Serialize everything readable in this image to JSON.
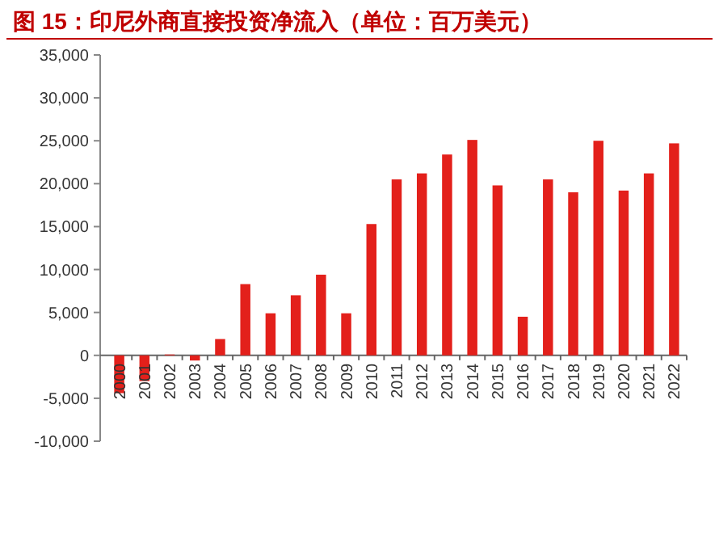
{
  "chart_data": {
    "type": "bar",
    "title": "图 15：印尼外商直接投资净流入（单位：百万美元）",
    "categories": [
      "2000",
      "2001",
      "2002",
      "2003",
      "2004",
      "2005",
      "2006",
      "2007",
      "2008",
      "2009",
      "2010",
      "2011",
      "2012",
      "2013",
      "2014",
      "2015",
      "2016",
      "2017",
      "2018",
      "2019",
      "2020",
      "2021",
      "2022"
    ],
    "values": [
      -4400,
      -3000,
      100,
      -600,
      1900,
      8300,
      4900,
      7000,
      9400,
      4900,
      15300,
      20500,
      21200,
      23400,
      25100,
      19800,
      4500,
      20500,
      19000,
      25000,
      19200,
      21200,
      24700
    ],
    "color": "#e3201b",
    "ylim": [
      -10000,
      35000
    ],
    "yticks": [
      {
        "value": -10000,
        "label": "-10,000"
      },
      {
        "value": -5000,
        "label": "-5,000"
      },
      0,
      {
        "value": 5000,
        "label": "5,000"
      },
      {
        "value": 10000,
        "label": "10,000"
      },
      {
        "value": 15000,
        "label": "15,000"
      },
      {
        "value": 20000,
        "label": "20,000"
      },
      {
        "value": 25000,
        "label": "25,000"
      },
      {
        "value": 30000,
        "label": "30,000"
      },
      {
        "value": 35000,
        "label": "35,000"
      }
    ],
    "grid": false
  }
}
